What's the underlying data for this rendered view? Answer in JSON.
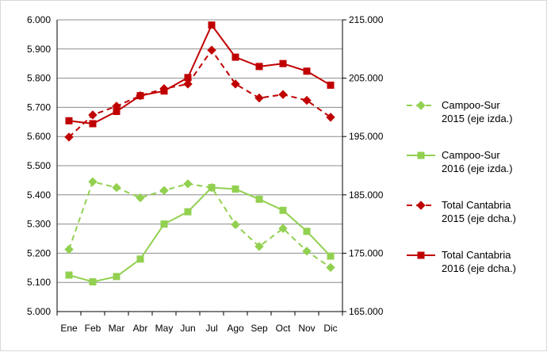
{
  "chart_data": {
    "type": "line",
    "categories": [
      "Ene",
      "Feb",
      "Mar",
      "Abr",
      "May",
      "Jun",
      "Jul",
      "Ago",
      "Sep",
      "Oct",
      "Nov",
      "Dic"
    ],
    "y_left": {
      "min": 5000,
      "max": 6000,
      "step": 100,
      "tick_labels": [
        "5.000",
        "5.100",
        "5.200",
        "5.300",
        "5.400",
        "5.500",
        "5.600",
        "5.700",
        "5.800",
        "5.900",
        "6.000"
      ]
    },
    "y_right": {
      "min": 165000,
      "max": 215000,
      "step": 10000,
      "tick_labels": [
        "165.000",
        "175.000",
        "185.000",
        "195.000",
        "205.000",
        "215.000"
      ]
    },
    "grid": "horizontal",
    "legend_position": "right",
    "series": [
      {
        "name": "Campoo-Sur 2015 (eje izda.)",
        "legend_lines": [
          "Campoo-Sur",
          "2015 (eje izda.)"
        ],
        "axis": "left",
        "color": "#92d050",
        "dash": true,
        "marker": "diamond",
        "values": [
          5213,
          5445,
          5425,
          5390,
          5415,
          5438,
          5425,
          5298,
          5223,
          5285,
          5207,
          5151
        ]
      },
      {
        "name": "Campoo-Sur 2016 (eje izda.)",
        "legend_lines": [
          "Campoo-Sur",
          "2016 (eje izda.)"
        ],
        "axis": "left",
        "color": "#92d050",
        "dash": false,
        "marker": "square",
        "values": [
          5125,
          5102,
          5120,
          5180,
          5300,
          5342,
          5425,
          5420,
          5385,
          5347,
          5275,
          5190
        ]
      },
      {
        "name": "Total Cantabria 2015 (eje dcha.)",
        "legend_lines": [
          "Total Cantabria",
          "2015 (eje dcha.)"
        ],
        "axis": "right",
        "color": "#c00000",
        "dash": true,
        "marker": "diamond",
        "values": [
          194900,
          198700,
          200200,
          202000,
          203200,
          204000,
          209800,
          204000,
          201600,
          202200,
          201200,
          198300
        ]
      },
      {
        "name": "Total Cantabria 2016 (eje dcha.)",
        "legend_lines": [
          "Total Cantabria",
          "2016 (eje dcha.)"
        ],
        "axis": "right",
        "color": "#c00000",
        "dash": false,
        "marker": "square",
        "values": [
          197700,
          197200,
          199300,
          202000,
          202800,
          205100,
          214100,
          208600,
          207000,
          207500,
          206200,
          203800
        ]
      }
    ]
  }
}
